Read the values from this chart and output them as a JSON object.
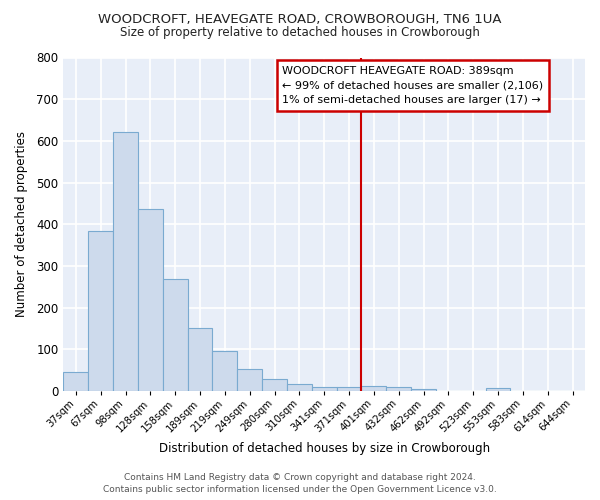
{
  "title": "WOODCROFT, HEAVEGATE ROAD, CROWBOROUGH, TN6 1UA",
  "subtitle": "Size of property relative to detached houses in Crowborough",
  "xlabel": "Distribution of detached houses by size in Crowborough",
  "ylabel": "Number of detached properties",
  "bar_color": "#cddaec",
  "bar_edge_color": "#7aaad0",
  "chart_bg_color": "#e8eef8",
  "fig_bg_color": "#ffffff",
  "grid_color": "#ffffff",
  "categories": [
    "37sqm",
    "67sqm",
    "98sqm",
    "128sqm",
    "158sqm",
    "189sqm",
    "219sqm",
    "249sqm",
    "280sqm",
    "310sqm",
    "341sqm",
    "371sqm",
    "401sqm",
    "432sqm",
    "462sqm",
    "492sqm",
    "523sqm",
    "553sqm",
    "583sqm",
    "614sqm",
    "644sqm"
  ],
  "values": [
    47,
    383,
    621,
    436,
    268,
    152,
    96,
    54,
    29,
    16,
    10,
    10,
    12,
    10,
    6,
    0,
    0,
    8,
    0,
    0,
    0
  ],
  "vline_x": 12.0,
  "vline_color": "#cc0000",
  "annotation_title": "WOODCROFT HEAVEGATE ROAD: 389sqm",
  "annotation_line1": "← 99% of detached houses are smaller (2,106)",
  "annotation_line2": "1% of semi-detached houses are larger (17) →",
  "annotation_box_color": "#ffffff",
  "annotation_border_color": "#cc0000",
  "footer": "Contains HM Land Registry data © Crown copyright and database right 2024.\nContains public sector information licensed under the Open Government Licence v3.0.",
  "ylim": [
    0,
    800
  ],
  "yticks": [
    0,
    100,
    200,
    300,
    400,
    500,
    600,
    700,
    800
  ]
}
